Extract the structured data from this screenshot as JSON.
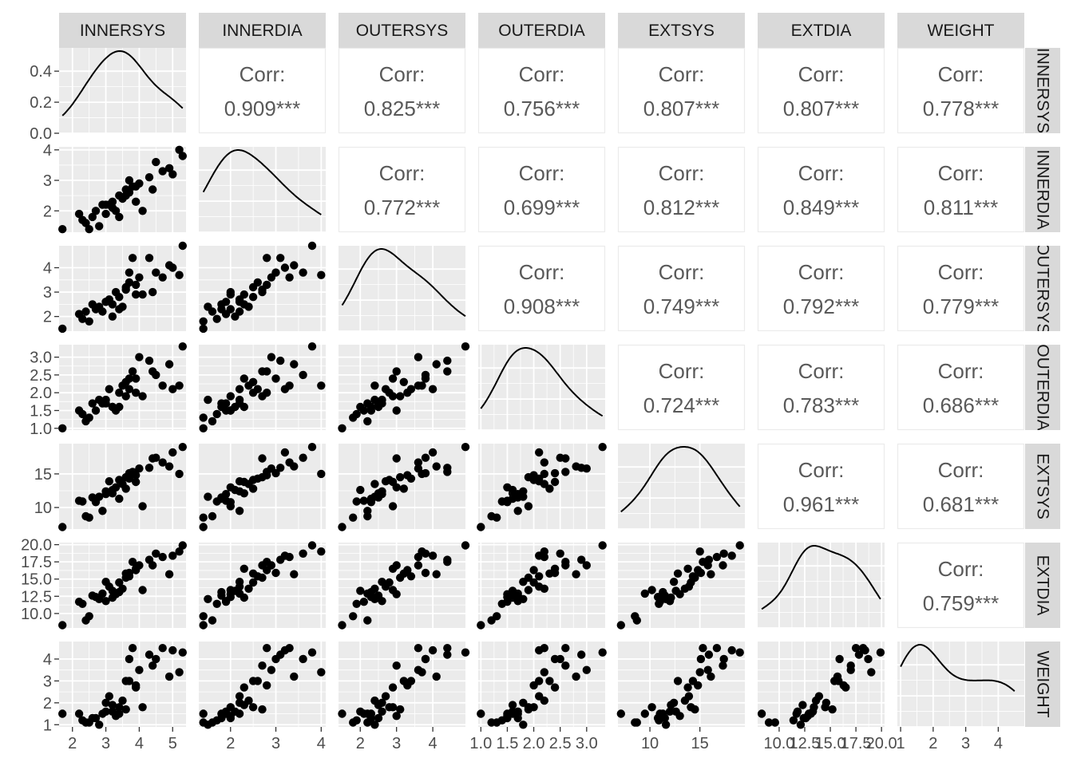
{
  "chart_data": {
    "type": "scatter",
    "variables": [
      {
        "name": "INNERSYS",
        "range": [
          1.6,
          5.4
        ],
        "ticks": [
          2,
          3,
          4,
          5
        ],
        "tick_labels": [
          "2",
          "3",
          "4",
          "5"
        ]
      },
      {
        "name": "INNERDIA",
        "range": [
          1.3,
          4.1
        ],
        "ticks": [
          2,
          3,
          4
        ],
        "tick_labels": [
          "2",
          "3",
          "4"
        ]
      },
      {
        "name": "OUTERSYS",
        "range": [
          1.4,
          4.9
        ],
        "ticks": [
          2,
          3,
          4
        ],
        "tick_labels": [
          "2",
          "3",
          "4"
        ]
      },
      {
        "name": "OUTERDIA",
        "range": [
          0.95,
          3.35
        ],
        "ticks": [
          1.0,
          1.5,
          2.0,
          2.5,
          3.0
        ],
        "tick_labels": [
          "1.0",
          "1.5",
          "2.0",
          "2.5",
          "3.0"
        ]
      },
      {
        "name": "EXTSYS",
        "range": [
          6.8,
          19.5
        ],
        "ticks": [
          10,
          15
        ],
        "tick_labels": [
          "10",
          "15"
        ]
      },
      {
        "name": "EXTDIA",
        "range": [
          7.9,
          20.3
        ],
        "ticks": [
          10.0,
          12.5,
          15.0,
          17.5,
          20.0
        ],
        "tick_labels": [
          "10.0",
          "12.5",
          "15.0",
          "17.5",
          "20.0"
        ]
      },
      {
        "name": "WEIGHT",
        "range": [
          0.9,
          4.8
        ],
        "ticks": [
          1,
          2,
          3,
          4
        ],
        "tick_labels": [
          "1",
          "2",
          "3",
          "4"
        ]
      }
    ],
    "density_ylim": [
      0,
      0.55
    ],
    "density_ticks": [
      0.0,
      0.2,
      0.4
    ],
    "density_tick_labels": [
      "0.0",
      "0.2",
      "0.4"
    ],
    "corr_label": "Corr:",
    "correlations": [
      {
        "row": 0,
        "col": 1,
        "value": "0.909***"
      },
      {
        "row": 0,
        "col": 2,
        "value": "0.825***"
      },
      {
        "row": 0,
        "col": 3,
        "value": "0.756***"
      },
      {
        "row": 0,
        "col": 4,
        "value": "0.807***"
      },
      {
        "row": 0,
        "col": 5,
        "value": "0.807***"
      },
      {
        "row": 0,
        "col": 6,
        "value": "0.778***"
      },
      {
        "row": 1,
        "col": 2,
        "value": "0.772***"
      },
      {
        "row": 1,
        "col": 3,
        "value": "0.699***"
      },
      {
        "row": 1,
        "col": 4,
        "value": "0.812***"
      },
      {
        "row": 1,
        "col": 5,
        "value": "0.849***"
      },
      {
        "row": 1,
        "col": 6,
        "value": "0.811***"
      },
      {
        "row": 2,
        "col": 3,
        "value": "0.908***"
      },
      {
        "row": 2,
        "col": 4,
        "value": "0.749***"
      },
      {
        "row": 2,
        "col": 5,
        "value": "0.792***"
      },
      {
        "row": 2,
        "col": 6,
        "value": "0.779***"
      },
      {
        "row": 3,
        "col": 4,
        "value": "0.724***"
      },
      {
        "row": 3,
        "col": 5,
        "value": "0.783***"
      },
      {
        "row": 3,
        "col": 6,
        "value": "0.686***"
      },
      {
        "row": 4,
        "col": 5,
        "value": "0.961***"
      },
      {
        "row": 4,
        "col": 6,
        "value": "0.681***"
      },
      {
        "row": 5,
        "col": 6,
        "value": "0.759***"
      }
    ],
    "observations": [
      [
        1.7,
        1.4,
        1.5,
        1.0,
        7.1,
        8.3,
        1.5
      ],
      [
        2.2,
        1.9,
        2.1,
        1.5,
        11.0,
        11.7,
        1.5
      ],
      [
        2.4,
        1.6,
        2.2,
        1.2,
        8.7,
        9.0,
        1.1
      ],
      [
        2.5,
        1.4,
        1.8,
        1.3,
        8.5,
        9.6,
        1.1
      ],
      [
        2.7,
        2.0,
        2.3,
        1.5,
        10.8,
        12.4,
        1.3
      ],
      [
        2.8,
        1.5,
        2.4,
        1.8,
        11.6,
        12.1,
        1.0
      ],
      [
        3.0,
        1.9,
        2.6,
        1.7,
        12.0,
        11.8,
        1.6
      ],
      [
        2.3,
        1.7,
        1.9,
        1.4,
        10.9,
        11.4,
        1.2
      ],
      [
        2.9,
        2.2,
        2.2,
        1.7,
        9.5,
        12.9,
        1.5
      ],
      [
        3.2,
        2.3,
        2.5,
        1.6,
        12.1,
        12.3,
        1.9
      ],
      [
        3.3,
        2.0,
        3.0,
        1.5,
        13.0,
        12.8,
        1.4
      ],
      [
        3.4,
        2.5,
        2.8,
        2.0,
        14.1,
        14.5,
        1.8
      ],
      [
        3.5,
        2.4,
        2.4,
        2.2,
        13.5,
        13.6,
        2.1
      ],
      [
        3.6,
        2.7,
        3.1,
        1.9,
        14.5,
        15.2,
        1.7
      ],
      [
        3.2,
        2.1,
        2.0,
        1.6,
        12.6,
        13.3,
        1.6
      ],
      [
        3.1,
        2.2,
        2.7,
        2.1,
        13.9,
        13.9,
        2.3
      ],
      [
        3.7,
        2.6,
        3.4,
        2.1,
        14.3,
        15.4,
        3.0
      ],
      [
        3.9,
        2.3,
        2.9,
        2.4,
        13.8,
        16.5,
        2.7
      ],
      [
        4.0,
        2.9,
        3.6,
        3.0,
        15.8,
        17.0,
        3.5
      ],
      [
        3.7,
        3.0,
        3.8,
        2.4,
        15.1,
        15.9,
        4.0
      ],
      [
        3.8,
        2.8,
        4.4,
        2.6,
        15.3,
        17.5,
        4.5
      ],
      [
        4.4,
        2.7,
        3.0,
        2.6,
        17.3,
        17.0,
        3.7
      ],
      [
        4.7,
        3.3,
        3.6,
        2.2,
        16.7,
        18.2,
        4.5
      ],
      [
        4.5,
        3.6,
        3.8,
        2.5,
        17.4,
        18.7,
        4.0
      ],
      [
        5.0,
        3.2,
        4.0,
        2.1,
        18.2,
        18.4,
        4.4
      ],
      [
        5.3,
        3.8,
        4.9,
        3.3,
        19.0,
        19.9,
        4.3
      ],
      [
        4.9,
        3.4,
        4.1,
        2.8,
        16.1,
        15.7,
        3.2
      ],
      [
        5.2,
        4.0,
        3.7,
        2.2,
        15.0,
        19.0,
        3.4
      ],
      [
        4.3,
        3.1,
        4.4,
        2.9,
        15.9,
        17.8,
        4.2
      ],
      [
        3.0,
        2.2,
        2.6,
        1.8,
        12.4,
        14.6,
        2.0
      ],
      [
        3.4,
        1.8,
        2.3,
        1.6,
        11.3,
        13.1,
        1.5
      ],
      [
        3.6,
        2.5,
        3.2,
        2.3,
        12.8,
        15.8,
        3.0
      ],
      [
        2.6,
        1.8,
        2.5,
        1.7,
        11.5,
        12.6,
        1.3
      ],
      [
        3.9,
        2.8,
        3.3,
        2.0,
        14.8,
        16.3,
        2.8
      ],
      [
        4.1,
        2.0,
        2.9,
        1.9,
        10.2,
        13.4,
        1.8
      ]
    ]
  }
}
